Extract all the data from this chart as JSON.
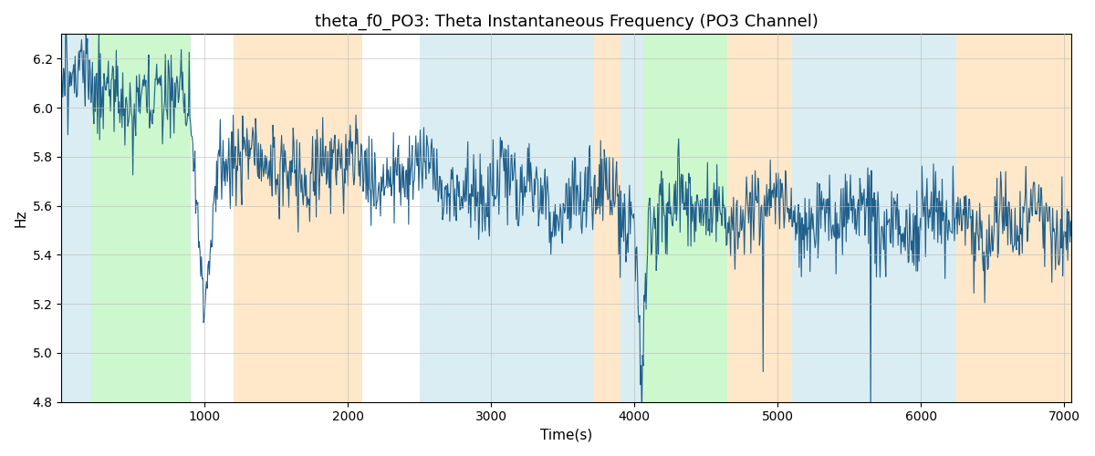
{
  "title": "theta_f0_PO3: Theta Instantaneous Frequency (PO3 Channel)",
  "xlabel": "Time(s)",
  "ylabel": "Hz",
  "xlim": [
    0,
    7050
  ],
  "ylim": [
    4.8,
    6.3
  ],
  "line_color": "#1f5f8b",
  "line_width": 0.8,
  "bg_regions": [
    {
      "xmin": 0,
      "xmax": 210,
      "color": "#add8e6",
      "alpha": 0.45
    },
    {
      "xmin": 210,
      "xmax": 900,
      "color": "#90ee90",
      "alpha": 0.45
    },
    {
      "xmin": 1200,
      "xmax": 2100,
      "color": "#ffd59e",
      "alpha": 0.55
    },
    {
      "xmin": 2500,
      "xmax": 3720,
      "color": "#add8e6",
      "alpha": 0.45
    },
    {
      "xmin": 3720,
      "xmax": 3900,
      "color": "#ffd59e",
      "alpha": 0.55
    },
    {
      "xmin": 3900,
      "xmax": 4060,
      "color": "#add8e6",
      "alpha": 0.45
    },
    {
      "xmin": 4060,
      "xmax": 4650,
      "color": "#90ee90",
      "alpha": 0.45
    },
    {
      "xmin": 4650,
      "xmax": 5100,
      "color": "#ffd59e",
      "alpha": 0.55
    },
    {
      "xmin": 5100,
      "xmax": 6250,
      "color": "#add8e6",
      "alpha": 0.45
    },
    {
      "xmin": 6250,
      "xmax": 7050,
      "color": "#ffd59e",
      "alpha": 0.55
    }
  ],
  "n_points": 1400,
  "seed": 2023,
  "grid_color": "#bbbbbb",
  "grid_alpha": 0.6,
  "title_fontsize": 13
}
